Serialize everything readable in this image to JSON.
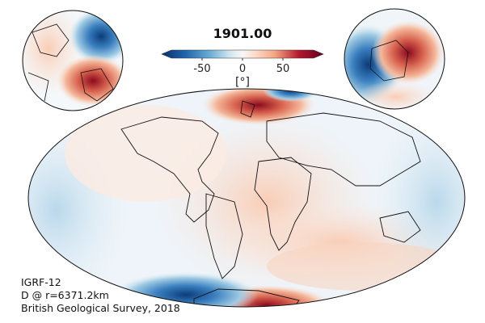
{
  "title": "1901.00",
  "colorbar": {
    "ticks": [
      "-50",
      "0",
      "50"
    ],
    "unit": "[°]",
    "range": [
      -90,
      90
    ],
    "colors": [
      "#08306b",
      "#2166ac",
      "#4393c3",
      "#92c5de",
      "#d1e5f0",
      "#f7f7f7",
      "#fddbc7",
      "#f4a582",
      "#d6604d",
      "#b2182b",
      "#67001f"
    ]
  },
  "credits": {
    "model": "IGRF-12",
    "quantity": "D @ r=6371.2km",
    "source": "British Geological Survey, 2018"
  }
}
